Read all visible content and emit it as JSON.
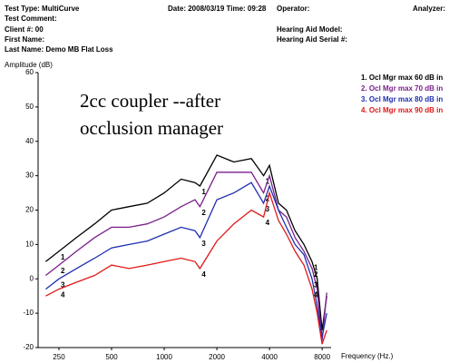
{
  "header": {
    "test_type": "Test Type: MultiCurve",
    "date_time": "Date: 2008/03/19 Time: 09:28",
    "operator": "Operator:",
    "analyzer": "Analyzer:",
    "test_comment": "Test Comment:",
    "client": "Client #: 00",
    "first_name": "First Name:",
    "last_name": "Last Name: Demo MB Flat Loss",
    "hearing_aid_model": "Hearing Aid Model:",
    "hearing_aid_serial": "Hearing Aid Serial #:"
  },
  "chart_data": {
    "type": "line",
    "annotation": [
      "2cc coupler --after",
      "occlusion manager"
    ],
    "y_label": "Amplitude (dB)",
    "x_label": "Frequency (Hz.)",
    "xscale": "log",
    "xlim": [
      190,
      9000
    ],
    "xticks": [
      250,
      500,
      1000,
      2000,
      4000,
      8000
    ],
    "ylim": [
      -20,
      60
    ],
    "yticks": [
      -20,
      -10,
      0,
      10,
      20,
      30,
      40,
      50,
      60
    ],
    "grid": false,
    "legend": "top-right",
    "x": [
      210,
      250,
      315,
      400,
      500,
      630,
      800,
      1000,
      1250,
      1500,
      1600,
      2000,
      2500,
      3150,
      3700,
      4000,
      4500,
      5000,
      5600,
      6300,
      7000,
      7500,
      8000,
      8500
    ],
    "series": [
      {
        "name": "1. Ocl Mgr max 60 dB in",
        "label": "1",
        "color": "#000000",
        "values": [
          5,
          8,
          12,
          16,
          20,
          21,
          22,
          25,
          29,
          28,
          27,
          36,
          34,
          35,
          30,
          33,
          22,
          20,
          14,
          10,
          5,
          0,
          -15,
          -5
        ]
      },
      {
        "name": "2. Ocl Mgr max 70 dB in",
        "label": "2",
        "color": "#7a1f8a",
        "values": [
          1,
          4,
          8,
          12,
          15,
          15,
          16,
          18,
          21,
          23,
          21,
          31,
          31,
          31,
          25,
          30,
          20,
          18,
          12,
          8,
          3,
          -3,
          -18,
          -4
        ]
      },
      {
        "name": "3. Ocl Mgr max 80 dB in",
        "label": "3",
        "color": "#1f2fb0",
        "values": [
          -3,
          0,
          3,
          6,
          9,
          10,
          11,
          13,
          15,
          14,
          12,
          23,
          25,
          28,
          22,
          27,
          20,
          15,
          10,
          7,
          0,
          -8,
          -17,
          -10
        ]
      },
      {
        "name": "4. Ocl Mgr max 90 dB in",
        "label": "4",
        "color": "#e01818",
        "values": [
          -5,
          -3,
          -1,
          1,
          4,
          3,
          4,
          5,
          6,
          5,
          3,
          11,
          16,
          20,
          18,
          25,
          17,
          13,
          8,
          4,
          -3,
          -10,
          -19,
          -15
        ]
      }
    ]
  }
}
